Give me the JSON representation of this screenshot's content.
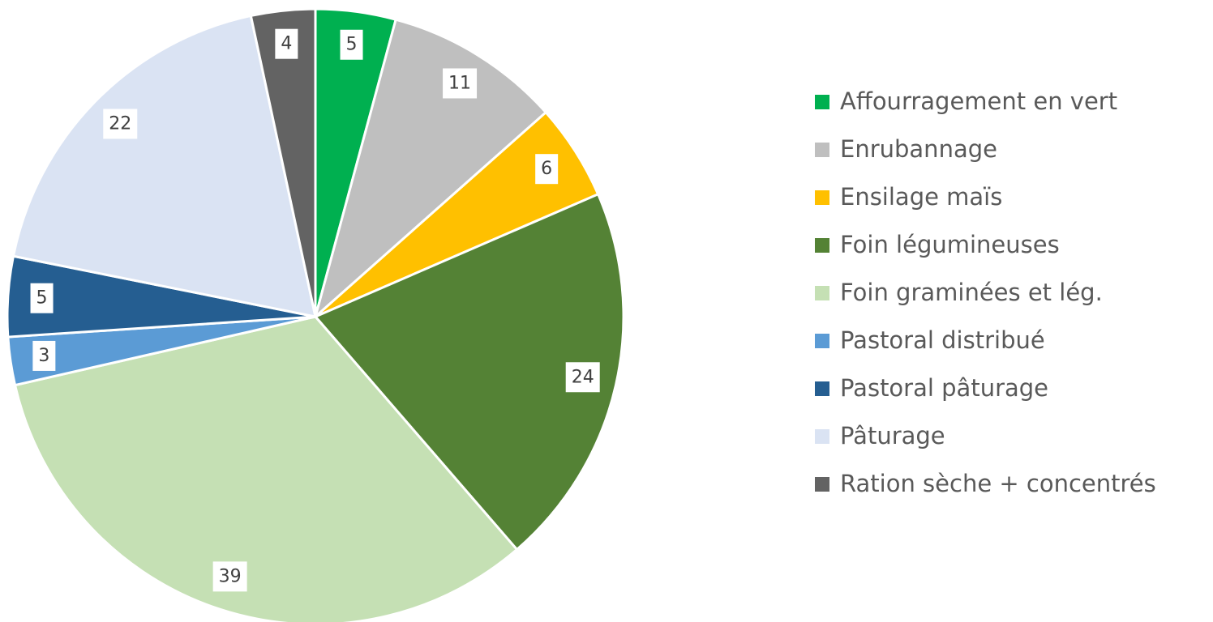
{
  "chart_data": {
    "type": "pie",
    "categories": [
      "Affourragement en vert",
      "Enrubannage",
      "Ensilage maïs",
      "Foin légumineuses",
      "Foin graminées et lég.",
      "Pastoral distribué",
      "Pastoral pâturage",
      "Pâturage",
      "Ration sèche + concentrés"
    ],
    "values": [
      5,
      11,
      6,
      24,
      39,
      3,
      5,
      22,
      4
    ],
    "colors": [
      "#00b050",
      "#bfbfbf",
      "#ffc000",
      "#548235",
      "#c5e0b4",
      "#5b9bd5",
      "#255e91",
      "#dae3f3",
      "#636363"
    ],
    "legend": "right"
  }
}
